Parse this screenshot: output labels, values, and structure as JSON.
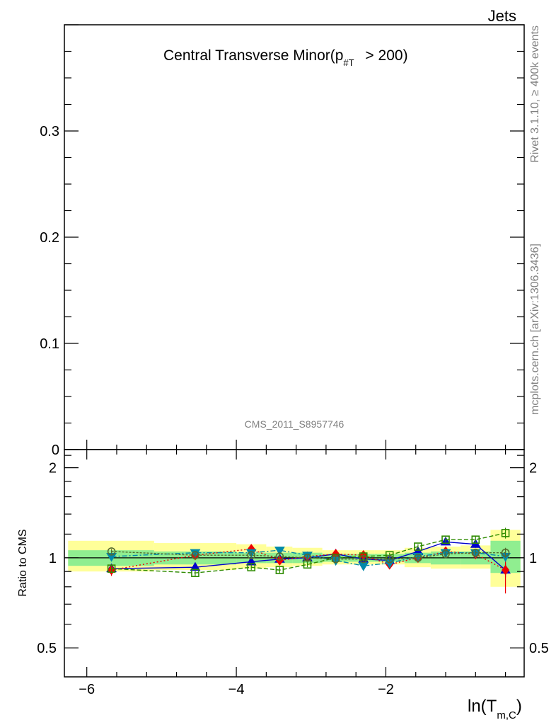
{
  "chart_data": {
    "type": "line",
    "header_label": "Jets",
    "title": "Central Transverse Minor(p",
    "title_sub": "#T",
    "title_tail": " > 200)",
    "watermark": "CMS_2011_S8957746",
    "side_label_top": "Rivet 3.1.10, ≥ 400k events",
    "side_label_bottom": "mcplots.cern.ch [arXiv:1306.3436]",
    "xlabel_main": "ln(T",
    "xlabel_sub": "m,C",
    "xlabel_tail": ")",
    "ylabel_ratio": "Ratio to CMS",
    "xlim": [
      -6.3,
      -0.15
    ],
    "main_ylim": [
      0,
      0.4
    ],
    "ratio_ylim": [
      0.4,
      2.3
    ],
    "ratio_scale": "log",
    "x_ticks": [
      -6,
      -4,
      -2
    ],
    "x_tick_labels": [
      "−6",
      "−4",
      "−2"
    ],
    "main_y_ticks": [
      0,
      0.1,
      0.2,
      0.3
    ],
    "main_y_tick_labels": [
      "0",
      "0.1",
      "0.2",
      "0.3"
    ],
    "ratio_y_ticks": [
      0.5,
      1,
      2
    ],
    "ratio_y_tick_labels": [
      "0.5",
      "1",
      "2"
    ],
    "bins": [
      [
        -6.25,
        -5.1
      ],
      [
        -5.1,
        -4.0
      ],
      [
        -4.0,
        -3.6
      ],
      [
        -3.6,
        -3.25
      ],
      [
        -3.25,
        -2.85
      ],
      [
        -2.85,
        -2.5
      ],
      [
        -2.5,
        -2.15
      ],
      [
        -2.15,
        -1.75
      ],
      [
        -1.75,
        -1.4
      ],
      [
        -1.4,
        -1.0
      ],
      [
        -1.0,
        -0.6
      ],
      [
        -0.6,
        -0.2
      ]
    ],
    "band_stat": [
      [
        0.94,
        1.06
      ],
      [
        0.95,
        1.05
      ],
      [
        0.96,
        1.04
      ],
      [
        0.96,
        1.04
      ],
      [
        0.96,
        1.04
      ],
      [
        0.97,
        1.03
      ],
      [
        0.97,
        1.03
      ],
      [
        0.97,
        1.03
      ],
      [
        0.96,
        1.04
      ],
      [
        0.95,
        1.05
      ],
      [
        0.95,
        1.05
      ],
      [
        0.89,
        1.14
      ]
    ],
    "band_total": [
      [
        0.9,
        1.14
      ],
      [
        0.91,
        1.12
      ],
      [
        0.92,
        1.11
      ],
      [
        0.93,
        1.09
      ],
      [
        0.94,
        1.08
      ],
      [
        0.95,
        1.06
      ],
      [
        0.95,
        1.06
      ],
      [
        0.95,
        1.06
      ],
      [
        0.93,
        1.08
      ],
      [
        0.92,
        1.09
      ],
      [
        0.92,
        1.1
      ],
      [
        0.8,
        1.24
      ]
    ],
    "x": [
      -5.67,
      -4.55,
      -3.8,
      -3.42,
      -3.05,
      -2.67,
      -2.3,
      -1.95,
      -1.57,
      -1.2,
      -0.8,
      -0.4
    ],
    "series": [
      {
        "color": "#0000cc",
        "dash": "",
        "marker": "triangle-up",
        "filled": true,
        "values": [
          0.92,
          0.93,
          0.97,
          0.99,
          1.0,
          1.03,
          0.99,
          0.98,
          1.05,
          1.13,
          1.11,
          0.91
        ],
        "errors": [
          0.03,
          0.02,
          0.02,
          0.02,
          0.02,
          0.02,
          0.02,
          0.02,
          0.02,
          0.02,
          0.03,
          0.05
        ]
      },
      {
        "color": "#ee0000",
        "dash": "2,3",
        "marker": "diamond",
        "filled": true,
        "values": [
          0.91,
          1.02,
          1.07,
          0.98,
          1.01,
          1.03,
          1.02,
          0.95,
          1.0,
          1.05,
          1.03,
          0.91
        ],
        "errors": [
          0.04,
          0.03,
          0.03,
          0.02,
          0.02,
          0.02,
          0.03,
          0.02,
          0.02,
          0.03,
          0.04,
          0.15
        ]
      },
      {
        "color": "#2e8b00",
        "dash": "6,3",
        "marker": "square",
        "filled": false,
        "values": [
          0.92,
          0.89,
          0.93,
          0.91,
          0.95,
          1.0,
          1.01,
          1.02,
          1.09,
          1.15,
          1.15,
          1.21
        ],
        "errors": [
          0.02,
          0.02,
          0.02,
          0.02,
          0.02,
          0.02,
          0.02,
          0.02,
          0.02,
          0.02,
          0.03,
          0.05
        ]
      },
      {
        "color": "#0088aa",
        "dash": "7,3,2,3",
        "marker": "triangle-down",
        "filled": true,
        "values": [
          1.01,
          1.04,
          1.04,
          1.06,
          1.02,
          0.98,
          0.94,
          0.96,
          1.01,
          1.04,
          1.04,
          1.01
        ],
        "errors": [
          0.02,
          0.02,
          0.02,
          0.02,
          0.02,
          0.02,
          0.02,
          0.02,
          0.02,
          0.02,
          0.02,
          0.04
        ]
      },
      {
        "color": "#556b2f",
        "dash": "3,2",
        "marker": "circle",
        "filled": false,
        "values": [
          1.05,
          1.02,
          1.02,
          1.01,
          1.0,
          0.99,
          0.99,
          0.99,
          1.0,
          1.03,
          1.04,
          1.04
        ],
        "errors": [
          0.02,
          0.02,
          0.02,
          0.02,
          0.02,
          0.02,
          0.02,
          0.02,
          0.02,
          0.02,
          0.02,
          0.04
        ]
      }
    ],
    "colors": {
      "band_total": "#ffff99",
      "band_stat": "#90ee90",
      "watermark": "#808080"
    }
  }
}
